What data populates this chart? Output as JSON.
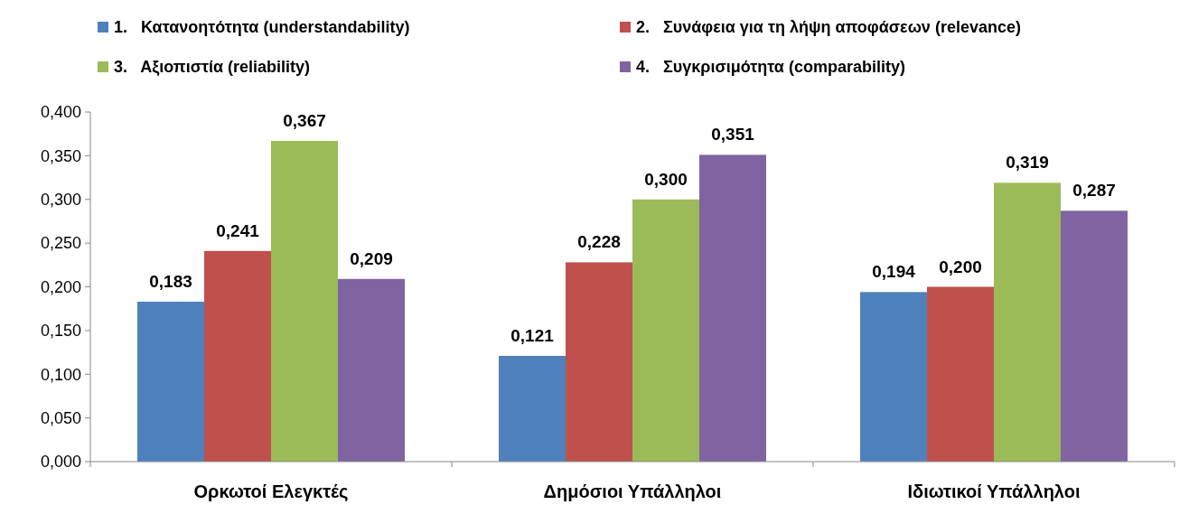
{
  "chart_data": {
    "type": "bar",
    "categories": [
      "Ορκωτοί Ελεγκτές",
      "Δημόσιοι Υπάλληλοι",
      "Ιδιωτικοί Υπάλληλοι"
    ],
    "series": [
      {
        "name": "1.   Κατανοητότητα (understandability)",
        "color": "#4f81bd",
        "values": [
          0.183,
          0.121,
          0.194
        ],
        "value_labels": [
          "0,183",
          "0,121",
          "0,194"
        ]
      },
      {
        "name": "2.   Συνάφεια για τη λήψη αποφάσεων (relevance)",
        "color": "#c0504d",
        "values": [
          0.241,
          0.228,
          0.2
        ],
        "value_labels": [
          "0,241",
          "0,228",
          "0,200"
        ]
      },
      {
        "name": "3.   Αξιοπιστία (reliability)",
        "color": "#9bbb59",
        "values": [
          0.367,
          0.3,
          0.319
        ],
        "value_labels": [
          "0,367",
          "0,300",
          "0,319"
        ]
      },
      {
        "name": "4.   Συγκρισιμότητα (comparability)",
        "color": "#8064a2",
        "values": [
          0.209,
          0.351,
          0.287
        ],
        "value_labels": [
          "0,209",
          "0,351",
          "0,287"
        ]
      }
    ],
    "ylim": [
      0,
      0.4
    ],
    "yticks": [
      {
        "value": 0,
        "label": "0,000"
      },
      {
        "value": 0.05,
        "label": "0,050"
      },
      {
        "value": 0.1,
        "label": "0,100"
      },
      {
        "value": 0.15,
        "label": "0,150"
      },
      {
        "value": 0.2,
        "label": "0,200"
      },
      {
        "value": 0.25,
        "label": "0,250"
      },
      {
        "value": 0.3,
        "label": "0,300"
      },
      {
        "value": 0.35,
        "label": "0,350"
      },
      {
        "value": 0.4,
        "label": "0,400"
      }
    ],
    "grid": false,
    "legend": "top"
  }
}
